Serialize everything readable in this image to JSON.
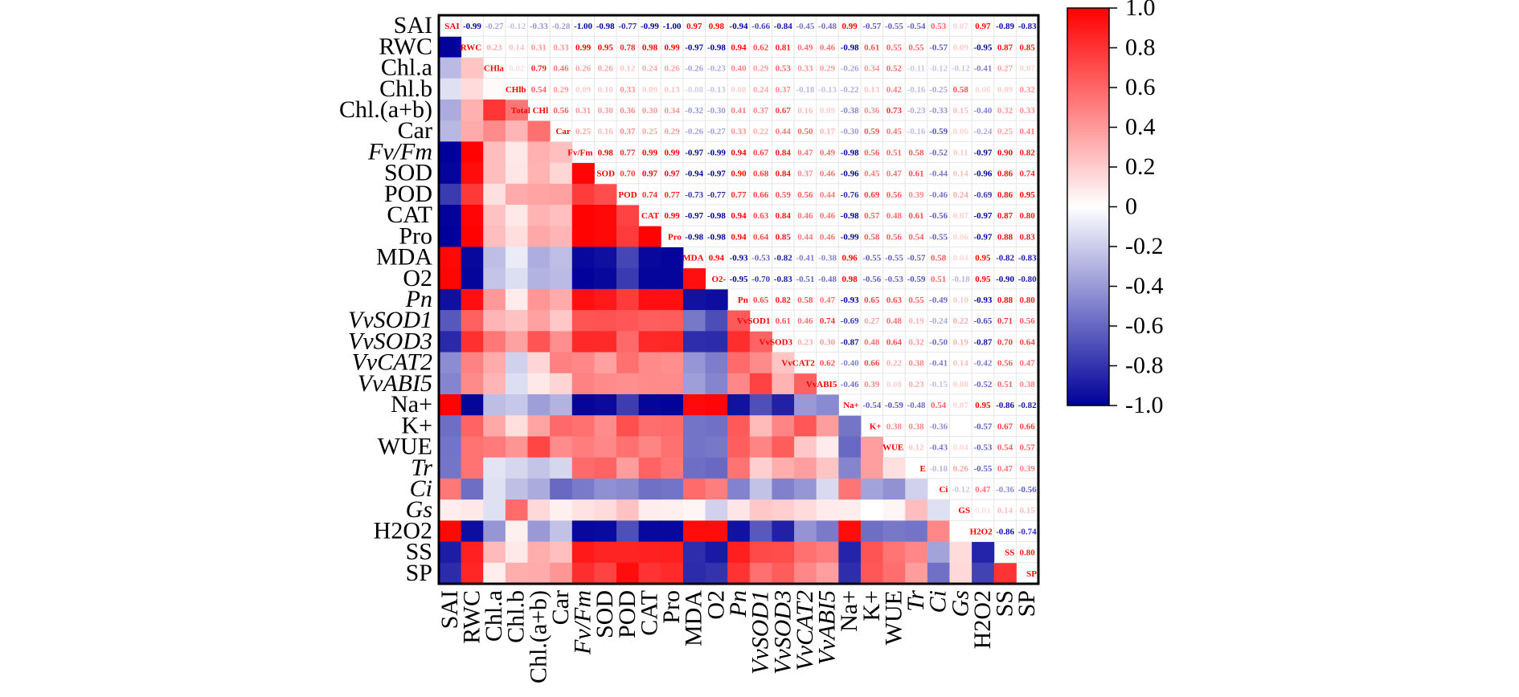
{
  "chart_data": {
    "type": "heatmap",
    "title": "",
    "subtitle": "",
    "description": "Pearson correlation matrix; lower triangle shown as colored cells, upper triangle shown as numeric values, diagonal shows variable abbreviations",
    "variables": [
      "SAI",
      "RWC",
      "Chl.a",
      "Chl.b",
      "Chl.(a+b)",
      "Car",
      "Fv/Fm",
      "SOD",
      "POD",
      "CAT",
      "Pro",
      "MDA",
      "O2·−",
      "Pn",
      "VvSOD1",
      "VvSOD3",
      "VvCAT2",
      "VvABI5",
      "Na+",
      "K+",
      "WUE",
      "Tr",
      "Ci",
      "Gs",
      "H2O2",
      "SS",
      "SP"
    ],
    "row_labels": [
      "SAI",
      "RWC",
      "Chl.a",
      "Chl.b",
      "Chl.(a+b)",
      "Car",
      "Fv/Fm",
      "SOD",
      "POD",
      "CAT",
      "Pro",
      "MDA",
      "O2",
      "Pn",
      "VvSOD1",
      "VvSOD3",
      "VvCAT2",
      "VvABI5",
      "Na+",
      "K+",
      "WUE",
      "Tr",
      "Ci",
      "Gs",
      "H2O2",
      "SS",
      "SP"
    ],
    "diagonal_labels": [
      "SAI",
      "RWC",
      "CHla",
      "CHlb",
      "Total CHl",
      "Car",
      "Fv/Fm",
      "SOD",
      "POD",
      "CAT",
      "Pro",
      "MDA",
      "O2-",
      "Pn",
      "VvSOD1",
      "VvSOD3",
      "VvCAT2",
      "VvABI5",
      "Na+",
      "K+",
      "WUE",
      "E",
      "Ci",
      "GS",
      "H2O2",
      "SS",
      "SP"
    ],
    "upper_triangle": [
      [
        -0.99,
        -0.27,
        -0.12,
        -0.33,
        -0.28,
        -1.0,
        -0.98,
        -0.77,
        -0.99,
        -1.0,
        0.97,
        0.98,
        -0.94,
        -0.66,
        -0.84,
        -0.45,
        -0.48,
        0.99,
        -0.57,
        -0.55,
        -0.54,
        0.53,
        0.07,
        0.97,
        -0.89,
        -0.83
      ],
      [
        0.23,
        0.14,
        0.31,
        0.33,
        0.99,
        0.95,
        0.78,
        0.98,
        0.99,
        -0.97,
        -0.98,
        0.94,
        0.62,
        0.81,
        0.49,
        0.46,
        -0.98,
        0.61,
        0.55,
        0.55,
        -0.57,
        0.09,
        -0.95,
        0.87,
        0.85
      ],
      [
        0.02,
        0.79,
        0.46,
        0.26,
        0.26,
        0.12,
        0.24,
        0.26,
        -0.26,
        -0.23,
        0.4,
        0.29,
        0.53,
        0.33,
        0.29,
        -0.26,
        0.34,
        0.52,
        -0.11,
        -0.12,
        -0.12,
        -0.41,
        0.27,
        0.07
      ],
      [
        0.54,
        0.29,
        0.09,
        0.1,
        0.33,
        0.09,
        0.13,
        -0.08,
        -0.13,
        0.08,
        0.24,
        0.37,
        -0.18,
        -0.13,
        -0.22,
        0.13,
        0.42,
        -0.16,
        -0.25,
        0.58,
        0.06,
        0.09,
        0.32
      ],
      [
        0.56,
        0.31,
        0.3,
        0.36,
        0.3,
        0.34,
        -0.32,
        -0.3,
        0.41,
        0.37,
        0.67,
        0.16,
        0.09,
        -0.38,
        0.36,
        0.73,
        -0.23,
        -0.33,
        0.15,
        -0.4,
        0.32,
        0.33
      ],
      [
        0.25,
        0.16,
        0.37,
        0.25,
        0.29,
        -0.26,
        -0.27,
        0.33,
        0.22,
        0.44,
        0.5,
        0.17,
        -0.3,
        0.59,
        0.45,
        -0.16,
        -0.59,
        0.06,
        -0.24,
        0.25,
        0.41
      ],
      [
        0.98,
        0.77,
        0.99,
        0.99,
        -0.97,
        -0.99,
        0.94,
        0.67,
        0.84,
        0.47,
        0.49,
        -0.98,
        0.56,
        0.51,
        0.58,
        -0.52,
        0.11,
        -0.97,
        0.9,
        0.82
      ],
      [
        0.7,
        0.97,
        0.97,
        -0.94,
        -0.97,
        0.9,
        0.68,
        0.84,
        0.37,
        0.46,
        -0.96,
        0.45,
        0.47,
        0.61,
        -0.44,
        0.14,
        -0.96,
        0.86,
        0.74
      ],
      [
        0.74,
        0.77,
        -0.73,
        -0.77,
        0.77,
        0.66,
        0.59,
        0.56,
        0.44,
        -0.76,
        0.69,
        0.56,
        0.39,
        -0.46,
        0.24,
        -0.69,
        0.86,
        0.95
      ],
      [
        0.99,
        -0.97,
        -0.98,
        0.94,
        0.63,
        0.84,
        0.46,
        0.46,
        -0.98,
        0.57,
        0.48,
        0.61,
        -0.56,
        0.07,
        -0.97,
        0.87,
        0.8
      ],
      [
        -0.98,
        -0.98,
        0.94,
        0.64,
        0.85,
        0.44,
        0.46,
        -0.99,
        0.58,
        0.56,
        0.54,
        -0.55,
        0.06,
        -0.97,
        0.88,
        0.83
      ],
      [
        0.94,
        -0.93,
        -0.53,
        -0.82,
        -0.41,
        -0.38,
        0.96,
        -0.55,
        -0.55,
        -0.57,
        0.58,
        0.04,
        0.95,
        -0.82,
        -0.83
      ],
      [
        -0.95,
        -0.7,
        -0.83,
        -0.51,
        -0.48,
        0.98,
        -0.56,
        -0.53,
        -0.59,
        0.51,
        -0.18,
        0.95,
        -0.9,
        -0.8
      ],
      [
        0.65,
        0.82,
        0.58,
        0.47,
        -0.93,
        0.65,
        0.63,
        0.55,
        -0.49,
        0.1,
        -0.93,
        0.88,
        0.8
      ],
      [
        0.61,
        0.46,
        0.74,
        -0.69,
        0.27,
        0.48,
        0.19,
        -0.24,
        0.22,
        -0.65,
        0.71,
        0.56
      ],
      [
        0.23,
        0.3,
        -0.87,
        0.48,
        0.64,
        0.32,
        -0.5,
        0.19,
        -0.87,
        0.7,
        0.64
      ],
      [
        0.62,
        -0.4,
        0.66,
        0.22,
        0.38,
        -0.41,
        0.14,
        -0.42,
        0.56,
        0.47
      ],
      [
        -0.46,
        0.39,
        0.08,
        0.23,
        -0.15,
        0.08,
        -0.52,
        0.51,
        0.38
      ],
      [
        -0.54,
        -0.59,
        -0.48,
        0.54,
        0.07,
        0.95,
        -0.86,
        -0.82
      ],
      [
        0.38,
        0.38,
        -0.36,
        0.0,
        -0.57,
        0.67,
        0.66
      ],
      [
        0.12,
        -0.43,
        0.04,
        -0.53,
        0.54,
        0.57
      ],
      [
        -0.18,
        0.26,
        -0.55,
        0.47,
        0.39
      ],
      [
        -0.12,
        0.47,
        -0.36,
        -0.56
      ],
      [
        0.005,
        0.14,
        0.15
      ],
      [
        -0.86,
        -0.74
      ],
      [
        0.8
      ]
    ],
    "colorbar": {
      "ticks": [
        "1.0",
        "0.8",
        "0.6",
        "0.4",
        "0.2",
        "0",
        "-0.2",
        "-0.4",
        "-0.6",
        "-0.8",
        "-1.0"
      ],
      "range": [
        -1.0,
        1.0
      ],
      "low_color": "#00009a",
      "mid_color": "#ffffff",
      "high_color": "#ff0000"
    },
    "xlabel": "",
    "ylabel": "",
    "legend": "right"
  }
}
